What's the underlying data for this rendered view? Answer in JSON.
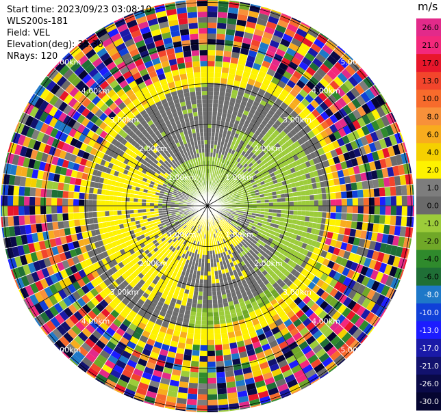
{
  "info": {
    "start_time": "Start time: 2023/09/23 03:08:10",
    "instrument": "WLS200s-181",
    "field": "Field: VEL",
    "elevation": "Elevation(deg): 35.30",
    "nrays": "NRays: 120"
  },
  "colorbar": {
    "title": "m/s",
    "levels": [
      {
        "label": "26.0",
        "color": "#e22a8a"
      },
      {
        "label": "21.0",
        "color": "#f3287b"
      },
      {
        "label": "17.0",
        "color": "#e8162b"
      },
      {
        "label": "13.0",
        "color": "#f2452c"
      },
      {
        "label": "10.0",
        "color": "#f76b2c"
      },
      {
        "label": "8.0",
        "color": "#f8913a"
      },
      {
        "label": "6.0",
        "color": "#f8ac1e"
      },
      {
        "label": "4.0",
        "color": "#f5d000"
      },
      {
        "label": "2.0",
        "color": "#fef200"
      },
      {
        "label": "1.0",
        "color": "#7d7d7d"
      },
      {
        "label": "0.0",
        "color": "#6a6a6a"
      },
      {
        "label": "-1.0",
        "color": "#9ccc3a"
      },
      {
        "label": "-2.0",
        "color": "#70a828"
      },
      {
        "label": "-4.0",
        "color": "#2f8a2c"
      },
      {
        "label": "-6.0",
        "color": "#1f6f36"
      },
      {
        "label": "-8.0",
        "color": "#1e78c8"
      },
      {
        "label": "-10.0",
        "color": "#1040d8"
      },
      {
        "label": "-13.0",
        "color": "#1c1cff"
      },
      {
        "label": "-17.0",
        "color": "#1a1aa8"
      },
      {
        "label": "-21.0",
        "color": "#12126e"
      },
      {
        "label": "-26.0",
        "color": "#0a0a48"
      },
      {
        "label": "-30.0",
        "color": "#050530"
      }
    ]
  },
  "range_rings": [
    {
      "label": "1.00km"
    },
    {
      "label": "2.00km"
    },
    {
      "label": "3.00km"
    },
    {
      "label": "4.00km"
    },
    {
      "label": "5.00km"
    }
  ],
  "colors": {
    "gray": "#6e6e6e",
    "yellow": "#fef200",
    "yellow_dark": "#f5d000",
    "green": "#9ccc3a",
    "green_dark": "#70a828",
    "orange": "#f8ac1e"
  }
}
